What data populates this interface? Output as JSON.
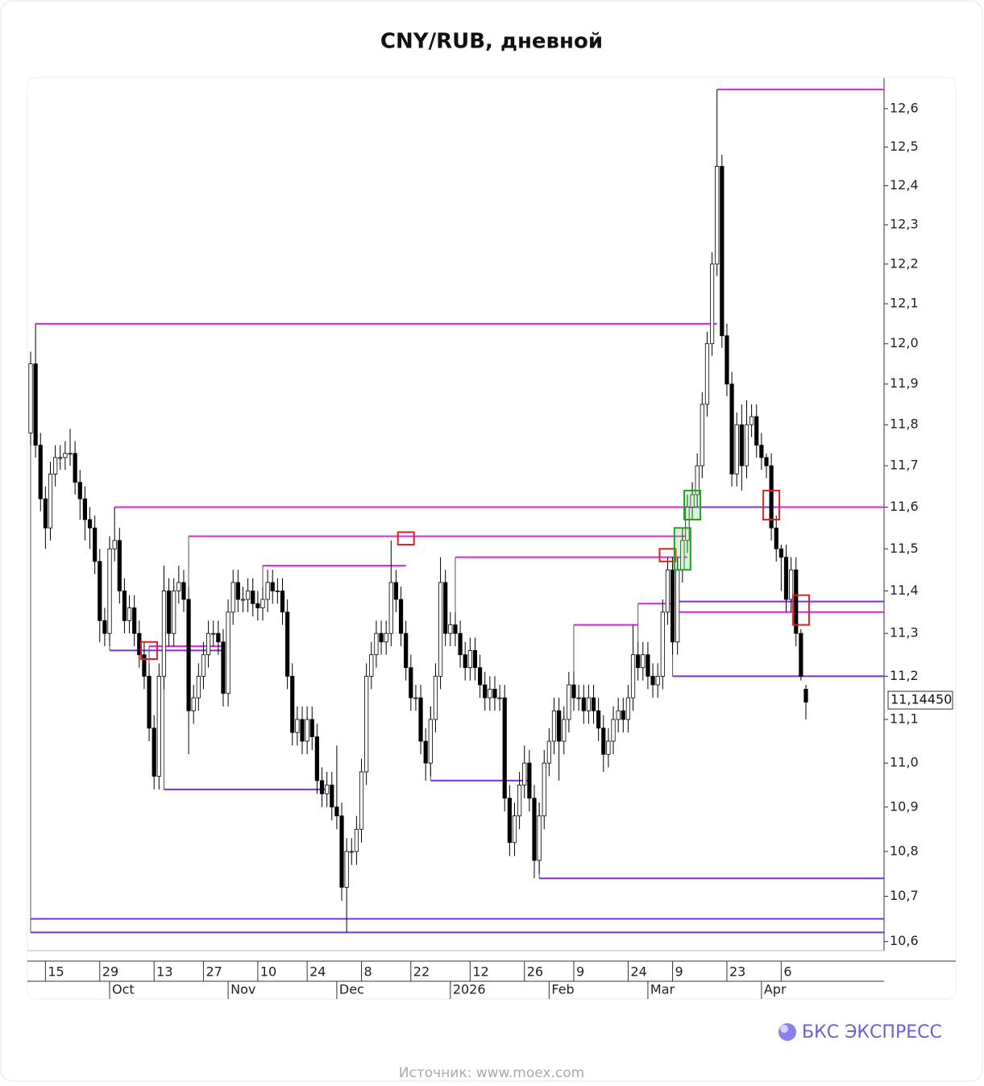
{
  "chart_data": {
    "type": "candlestick",
    "title": "CNY/RUB, дневной",
    "log_scale": true,
    "grid": false,
    "ylim": [
      10.58,
      12.68
    ],
    "yticks": [
      {
        "value": 10.6,
        "label": "10,6"
      },
      {
        "value": 10.7,
        "label": "10,7"
      },
      {
        "value": 10.8,
        "label": "10,8"
      },
      {
        "value": 10.9,
        "label": "10,9"
      },
      {
        "value": 11.0,
        "label": "11,0"
      },
      {
        "value": 11.1,
        "label": "11,1"
      },
      {
        "value": 11.2,
        "label": "11,2"
      },
      {
        "value": 11.3,
        "label": "11,3"
      },
      {
        "value": 11.4,
        "label": "11,4"
      },
      {
        "value": 11.5,
        "label": "11,5"
      },
      {
        "value": 11.6,
        "label": "11,6"
      },
      {
        "value": 11.7,
        "label": "11,7"
      },
      {
        "value": 11.8,
        "label": "11,8"
      },
      {
        "value": 11.9,
        "label": "11,9"
      },
      {
        "value": 12.0,
        "label": "12,0"
      },
      {
        "value": 12.1,
        "label": "12,1"
      },
      {
        "value": 12.2,
        "label": "12,2"
      },
      {
        "value": 12.3,
        "label": "12,3"
      },
      {
        "value": 12.4,
        "label": "12,4"
      },
      {
        "value": 12.5,
        "label": "12,5"
      },
      {
        "value": 12.6,
        "label": "12,6"
      }
    ],
    "last_price": {
      "value": 11.1445,
      "label": "11,14450"
    },
    "up_color": "#ffffff",
    "down_color": "#000000",
    "categories": [
      null,
      null,
      null,
      "15",
      null,
      null,
      null,
      null,
      null,
      null,
      null,
      null,
      null,
      null,
      "29",
      null,
      null,
      null,
      null,
      null,
      null,
      null,
      null,
      null,
      null,
      "13",
      null,
      null,
      null,
      null,
      null,
      null,
      null,
      null,
      null,
      "27",
      null,
      null,
      null,
      null,
      null,
      null,
      null,
      null,
      null,
      null,
      "10",
      null,
      null,
      null,
      null,
      null,
      null,
      null,
      null,
      null,
      "24",
      null,
      null,
      null,
      null,
      null,
      null,
      null,
      null,
      null,
      null,
      "8",
      null,
      null,
      null,
      null,
      null,
      null,
      null,
      null,
      null,
      "22",
      null,
      null,
      null,
      null,
      null,
      null,
      null,
      null,
      null,
      null,
      null,
      "12",
      null,
      null,
      null,
      null,
      null,
      null,
      null,
      null,
      null,
      null,
      "26",
      null,
      null,
      null,
      null,
      null,
      null,
      null,
      null,
      null,
      "9",
      null,
      null,
      null,
      null,
      null,
      null,
      null,
      null,
      null,
      null,
      "24",
      null,
      null,
      null,
      null,
      null,
      null,
      null,
      null,
      "9",
      null,
      null,
      null,
      null,
      null,
      null,
      null,
      null,
      null,
      null,
      "23",
      null,
      null,
      null,
      null,
      null,
      null,
      null,
      null,
      null,
      null,
      "6",
      null,
      null,
      null,
      null,
      null
    ],
    "months": [
      null,
      null,
      null,
      null,
      null,
      null,
      null,
      null,
      null,
      null,
      null,
      null,
      null,
      null,
      null,
      null,
      "Oct",
      null,
      null,
      null,
      null,
      null,
      null,
      null,
      null,
      null,
      null,
      null,
      null,
      null,
      null,
      null,
      null,
      null,
      null,
      null,
      null,
      null,
      null,
      null,
      "Nov",
      null,
      null,
      null,
      null,
      null,
      null,
      null,
      null,
      null,
      null,
      null,
      null,
      null,
      null,
      null,
      null,
      null,
      null,
      null,
      null,
      null,
      "Dec",
      null,
      null,
      null,
      null,
      null,
      null,
      null,
      null,
      null,
      null,
      null,
      null,
      null,
      null,
      null,
      null,
      null,
      null,
      null,
      null,
      null,
      null,
      "2026",
      null,
      null,
      null,
      null,
      null,
      null,
      null,
      null,
      null,
      null,
      null,
      null,
      null,
      null,
      null,
      null,
      null,
      null,
      null,
      "Feb",
      null,
      null,
      null,
      null,
      null,
      null,
      null,
      null,
      null,
      null,
      null,
      null,
      null,
      null,
      null,
      null,
      null,
      null,
      null,
      "Mar",
      null,
      null,
      null,
      null,
      null,
      null,
      null,
      null,
      null,
      null,
      null,
      null,
      null,
      null,
      null,
      null,
      null,
      null,
      null,
      null,
      null,
      null,
      "Apr",
      null,
      null,
      null,
      null,
      null,
      null,
      null,
      null,
      null
    ],
    "open": [
      11.78,
      11.95,
      11.75,
      11.62,
      11.55,
      11.68,
      11.72,
      11.72,
      11.73,
      11.73,
      11.66,
      11.62,
      11.57,
      11.55,
      11.47,
      11.33,
      11.3,
      11.5,
      11.52,
      11.4,
      11.33,
      11.36,
      11.3,
      11.25,
      11.2,
      11.08,
      10.97,
      11.2,
      11.4,
      11.3,
      11.4,
      11.42,
      11.38,
      11.12,
      11.15,
      11.2,
      11.25,
      11.3,
      11.3,
      11.28,
      11.16,
      11.35,
      11.42,
      11.38,
      11.38,
      11.4,
      11.37,
      11.36,
      11.38,
      11.42,
      11.4,
      11.4,
      11.35,
      11.2,
      11.07,
      11.1,
      11.05,
      11.1,
      11.06,
      10.96,
      10.93,
      10.95,
      10.9,
      10.88,
      10.72,
      10.8,
      10.8,
      10.85,
      10.98,
      11.2,
      11.25,
      11.3,
      11.28,
      11.3,
      11.42,
      11.38,
      11.3,
      11.22,
      11.15,
      11.15,
      11.05,
      11.0,
      11.1,
      11.2,
      11.42,
      11.3,
      11.32,
      11.3,
      11.25,
      11.22,
      11.26,
      11.22,
      11.18,
      11.15,
      11.17,
      11.15,
      11.15,
      10.92,
      10.82,
      10.88,
      10.95,
      11.0,
      10.92,
      10.78,
      10.88,
      11.0,
      11.05,
      11.12,
      11.05,
      11.1,
      11.18,
      11.15,
      11.15,
      11.12,
      11.15,
      11.12,
      11.08,
      11.02,
      11.05,
      11.1,
      11.12,
      11.1,
      11.15,
      11.25,
      11.22,
      11.25,
      11.2,
      11.18,
      11.2,
      11.35,
      11.45,
      11.28,
      11.45,
      11.52,
      11.6,
      11.63,
      11.7,
      11.85,
      12.0,
      12.2,
      12.45,
      12.02,
      11.9,
      11.68,
      11.8,
      11.7,
      11.8,
      11.82,
      11.75,
      11.72,
      11.7,
      11.55,
      11.5,
      11.48,
      11.38,
      11.45,
      11.3,
      11.17
    ],
    "high": [
      11.98,
      12.05,
      11.78,
      11.65,
      11.71,
      11.75,
      11.75,
      11.76,
      11.79,
      11.76,
      11.69,
      11.65,
      11.6,
      11.58,
      11.5,
      11.36,
      11.53,
      11.6,
      11.55,
      11.43,
      11.39,
      11.39,
      11.33,
      11.28,
      11.23,
      11.11,
      11.23,
      11.46,
      11.43,
      11.43,
      11.46,
      11.45,
      11.41,
      11.18,
      11.23,
      11.28,
      11.33,
      11.33,
      11.33,
      11.31,
      11.38,
      11.45,
      11.45,
      11.41,
      11.43,
      11.43,
      11.4,
      11.41,
      11.45,
      11.45,
      11.43,
      11.43,
      11.38,
      11.23,
      11.13,
      11.13,
      11.13,
      11.13,
      11.09,
      10.99,
      10.98,
      10.98,
      11.04,
      10.91,
      10.83,
      10.83,
      10.88,
      11.01,
      11.23,
      11.28,
      11.33,
      11.33,
      11.33,
      11.52,
      11.45,
      11.41,
      11.33,
      11.25,
      11.18,
      11.18,
      11.08,
      11.13,
      11.23,
      11.48,
      11.45,
      11.35,
      11.35,
      11.33,
      11.28,
      11.29,
      11.29,
      11.25,
      11.21,
      11.2,
      11.2,
      11.18,
      11.18,
      10.95,
      10.91,
      10.98,
      11.04,
      11.03,
      10.95,
      10.91,
      11.03,
      11.08,
      11.15,
      11.15,
      11.13,
      11.21,
      11.21,
      11.18,
      11.18,
      11.18,
      11.18,
      11.15,
      11.11,
      11.08,
      11.13,
      11.15,
      11.15,
      11.18,
      11.32,
      11.28,
      11.28,
      11.28,
      11.23,
      11.23,
      11.38,
      11.48,
      11.48,
      11.48,
      11.55,
      11.63,
      11.66,
      11.73,
      11.88,
      12.03,
      12.23,
      12.65,
      12.48,
      12.05,
      11.93,
      11.83,
      11.85,
      11.86,
      11.85,
      11.85,
      11.78,
      11.73,
      11.73,
      11.58,
      11.51,
      11.51,
      11.48,
      11.48,
      11.31,
      11.18
    ],
    "low": [
      11.75,
      11.72,
      11.59,
      11.5,
      11.52,
      11.65,
      11.69,
      11.69,
      11.7,
      11.63,
      11.57,
      11.52,
      11.5,
      11.44,
      11.28,
      11.27,
      11.27,
      11.47,
      11.37,
      11.3,
      11.3,
      11.27,
      11.22,
      11.17,
      11.05,
      10.94,
      10.94,
      11.17,
      11.27,
      11.27,
      11.37,
      11.35,
      11.02,
      11.09,
      11.12,
      11.17,
      11.22,
      11.27,
      11.25,
      11.13,
      11.13,
      11.32,
      11.35,
      11.35,
      11.35,
      11.34,
      11.33,
      11.33,
      11.35,
      11.37,
      11.37,
      11.32,
      11.17,
      11.04,
      11.04,
      11.02,
      11.02,
      11.03,
      10.93,
      10.9,
      10.9,
      10.87,
      10.85,
      10.69,
      10.62,
      10.77,
      10.77,
      10.82,
      10.95,
      11.17,
      11.22,
      11.25,
      11.25,
      11.27,
      11.35,
      11.27,
      11.19,
      11.12,
      11.12,
      11.02,
      10.96,
      10.97,
      11.07,
      11.17,
      11.27,
      11.27,
      11.27,
      11.22,
      11.19,
      11.19,
      11.19,
      11.15,
      11.12,
      11.12,
      11.12,
      11.12,
      10.89,
      10.79,
      10.79,
      10.85,
      10.92,
      10.89,
      10.74,
      10.75,
      10.85,
      10.97,
      11.02,
      10.96,
      11.02,
      11.07,
      11.12,
      11.12,
      11.09,
      11.09,
      11.09,
      11.05,
      10.98,
      10.99,
      11.02,
      11.07,
      11.07,
      11.07,
      11.12,
      11.19,
      11.19,
      11.17,
      11.15,
      11.15,
      11.17,
      11.32,
      11.25,
      11.25,
      11.42,
      11.49,
      11.57,
      11.6,
      11.67,
      11.82,
      11.97,
      12.17,
      11.99,
      11.87,
      11.65,
      11.65,
      11.64,
      11.67,
      11.77,
      11.72,
      11.69,
      11.67,
      11.52,
      11.47,
      11.4,
      11.35,
      11.35,
      11.27,
      11.19,
      11.1
    ],
    "close": [
      11.95,
      11.75,
      11.62,
      11.55,
      11.68,
      11.72,
      11.72,
      11.73,
      11.73,
      11.66,
      11.62,
      11.57,
      11.55,
      11.47,
      11.33,
      11.3,
      11.5,
      11.52,
      11.4,
      11.33,
      11.36,
      11.3,
      11.25,
      11.2,
      11.08,
      10.97,
      11.2,
      11.4,
      11.3,
      11.4,
      11.42,
      11.38,
      11.12,
      11.15,
      11.2,
      11.25,
      11.3,
      11.3,
      11.28,
      11.16,
      11.35,
      11.42,
      11.38,
      11.38,
      11.4,
      11.37,
      11.36,
      11.38,
      11.42,
      11.4,
      11.4,
      11.35,
      11.2,
      11.07,
      11.1,
      11.05,
      11.1,
      11.06,
      10.96,
      10.93,
      10.95,
      10.9,
      10.88,
      10.72,
      10.8,
      10.8,
      10.85,
      10.98,
      11.2,
      11.25,
      11.3,
      11.28,
      11.3,
      11.42,
      11.38,
      11.3,
      11.22,
      11.15,
      11.15,
      11.05,
      11.0,
      11.1,
      11.2,
      11.42,
      11.3,
      11.32,
      11.3,
      11.25,
      11.22,
      11.26,
      11.22,
      11.18,
      11.15,
      11.17,
      11.15,
      11.15,
      10.92,
      10.82,
      10.88,
      10.95,
      11.0,
      10.92,
      10.78,
      10.88,
      11.0,
      11.05,
      11.12,
      11.05,
      11.1,
      11.18,
      11.15,
      11.15,
      11.12,
      11.15,
      11.12,
      11.08,
      11.02,
      11.05,
      11.1,
      11.12,
      11.1,
      11.15,
      11.25,
      11.22,
      11.25,
      11.2,
      11.18,
      11.2,
      11.35,
      11.45,
      11.28,
      11.45,
      11.52,
      11.6,
      11.63,
      11.7,
      11.85,
      12.0,
      12.2,
      12.45,
      12.02,
      11.9,
      11.68,
      11.8,
      11.7,
      11.8,
      11.82,
      11.75,
      11.72,
      11.7,
      11.55,
      11.5,
      11.48,
      11.38,
      11.45,
      11.3,
      11.2,
      11.14
    ],
    "levels": [
      {
        "value": 12.65,
        "from": 139,
        "to": 157,
        "color": "#e020e0"
      },
      {
        "value": 12.05,
        "from": 1,
        "to": 139,
        "color": "#e020e0"
      },
      {
        "value": 11.6,
        "from": 17,
        "to": 157,
        "color": "#e020e0"
      },
      {
        "value": 11.6,
        "from": 134,
        "to": 150,
        "color": "#7b2fe0"
      },
      {
        "value": 11.53,
        "from": 32,
        "to": 133,
        "color": "#e020e0"
      },
      {
        "value": 11.48,
        "from": 86,
        "to": 133,
        "color": "#e020e0"
      },
      {
        "value": 11.46,
        "from": 47,
        "to": 76,
        "color": "#e020e0"
      },
      {
        "value": 11.375,
        "from": 131,
        "to": 157,
        "color": "#7b2fe0"
      },
      {
        "value": 11.37,
        "from": 123,
        "to": 130,
        "color": "#e020e0"
      },
      {
        "value": 11.35,
        "from": 131,
        "to": 157,
        "color": "#e020e0"
      },
      {
        "value": 11.32,
        "from": 110,
        "to": 123,
        "color": "#e020e0"
      },
      {
        "value": 11.27,
        "from": 24,
        "to": 39,
        "color": "#e020e0"
      },
      {
        "value": 11.26,
        "from": 16,
        "to": 39,
        "color": "#7b2fe0"
      },
      {
        "value": 11.2,
        "from": 130,
        "to": 157,
        "color": "#7b2fe0"
      },
      {
        "value": 10.96,
        "from": 81,
        "to": 101,
        "color": "#7b2fe0"
      },
      {
        "value": 10.94,
        "from": 27,
        "to": 60,
        "color": "#7b2fe0"
      },
      {
        "value": 10.74,
        "from": 103,
        "to": 157,
        "color": "#7b2fe0"
      },
      {
        "value": 10.65,
        "from": 0,
        "to": 157,
        "color": "#7b2fe0"
      },
      {
        "value": 10.62,
        "from": 0,
        "to": 157,
        "color": "#7b2fe0"
      }
    ],
    "highlights": [
      {
        "index": 24,
        "low": 11.24,
        "high": 11.28,
        "color": "#e02020"
      },
      {
        "index": 76,
        "low": 11.51,
        "high": 11.54,
        "color": "#e02020"
      },
      {
        "index": 129,
        "low": 11.47,
        "high": 11.5,
        "color": "#e02020"
      },
      {
        "index": 132,
        "low": 11.45,
        "high": 11.55,
        "color": "#22a022"
      },
      {
        "index": 134,
        "low": 11.57,
        "high": 11.64,
        "color": "#22a022"
      },
      {
        "index": 150,
        "low": 11.57,
        "high": 11.64,
        "color": "#e02020"
      },
      {
        "index": 156,
        "low": 11.32,
        "high": 11.39,
        "color": "#e02020"
      }
    ]
  },
  "footer": {
    "brand": "БКС ЭКСПРЕСС",
    "source": "Источник: www.moex.com"
  }
}
